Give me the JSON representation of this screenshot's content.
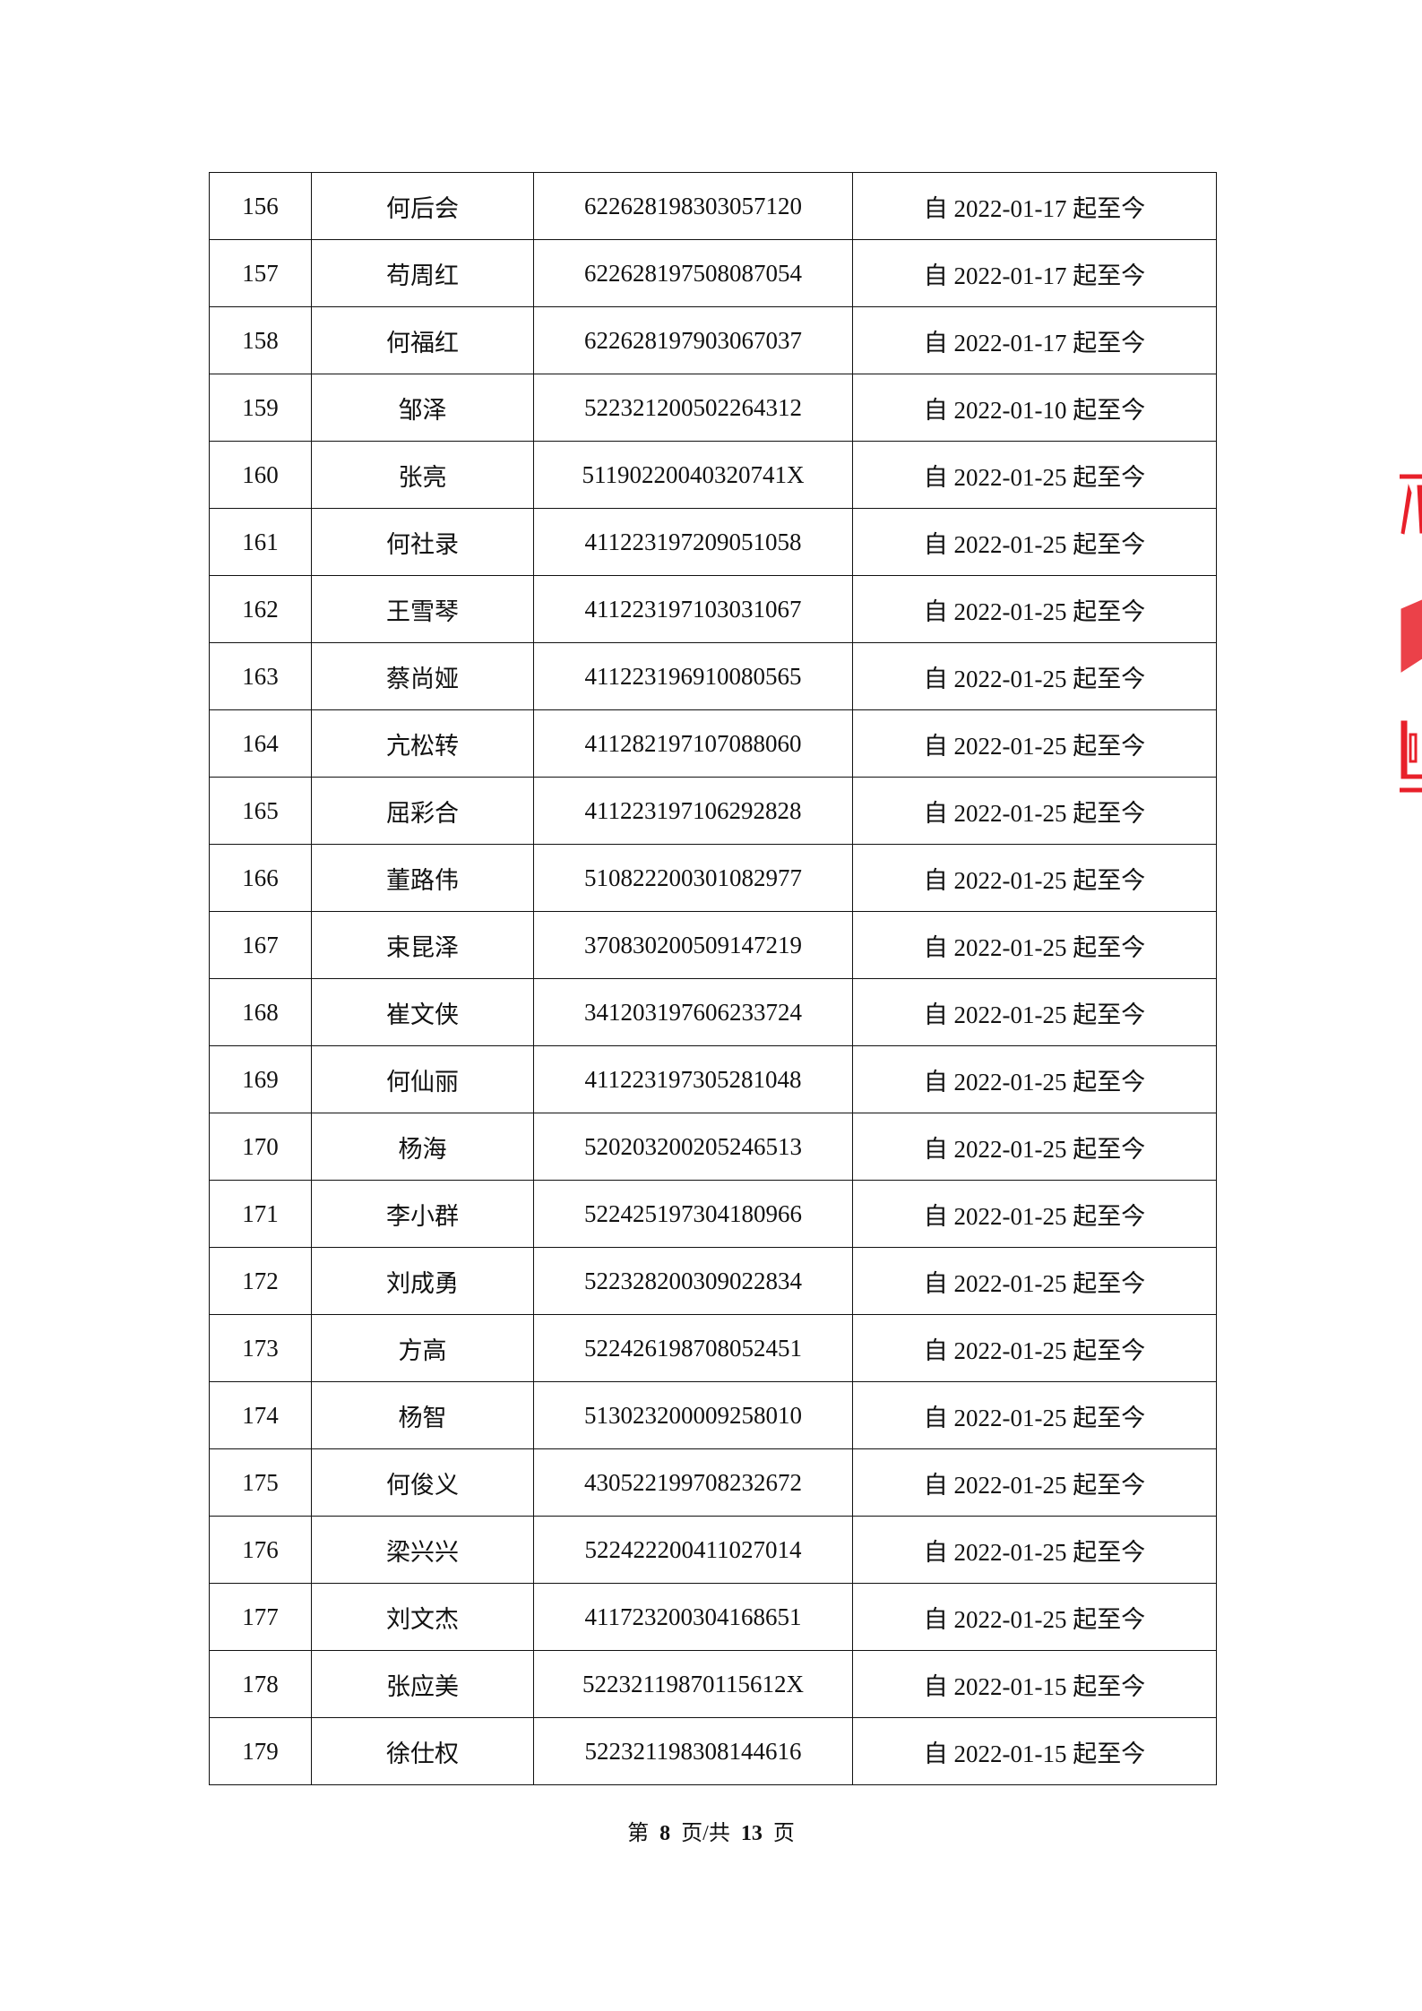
{
  "rows": [
    {
      "no": "156",
      "name": "何后会",
      "id": "622628198303057120",
      "period": "自 2022-01-17 起至今"
    },
    {
      "no": "157",
      "name": "苟周红",
      "id": "622628197508087054",
      "period": "自 2022-01-17 起至今"
    },
    {
      "no": "158",
      "name": "何福红",
      "id": "622628197903067037",
      "period": "自 2022-01-17 起至今"
    },
    {
      "no": "159",
      "name": "邹泽",
      "id": "522321200502264312",
      "period": "自 2022-01-10 起至今"
    },
    {
      "no": "160",
      "name": "张亮",
      "id": "51190220040320741X",
      "period": "自 2022-01-25 起至今"
    },
    {
      "no": "161",
      "name": "何社录",
      "id": "411223197209051058",
      "period": "自 2022-01-25 起至今"
    },
    {
      "no": "162",
      "name": "王雪琴",
      "id": "411223197103031067",
      "period": "自 2022-01-25 起至今"
    },
    {
      "no": "163",
      "name": "蔡尚娅",
      "id": "411223196910080565",
      "period": "自 2022-01-25 起至今"
    },
    {
      "no": "164",
      "name": "亢松转",
      "id": "411282197107088060",
      "period": "自 2022-01-25 起至今"
    },
    {
      "no": "165",
      "name": "屈彩合",
      "id": "411223197106292828",
      "period": "自 2022-01-25 起至今"
    },
    {
      "no": "166",
      "name": "董路伟",
      "id": "510822200301082977",
      "period": "自 2022-01-25 起至今"
    },
    {
      "no": "167",
      "name": "束昆泽",
      "id": "370830200509147219",
      "period": "自 2022-01-25 起至今"
    },
    {
      "no": "168",
      "name": "崔文侠",
      "id": "341203197606233724",
      "period": "自 2022-01-25 起至今"
    },
    {
      "no": "169",
      "name": "何仙丽",
      "id": "411223197305281048",
      "period": "自 2022-01-25 起至今"
    },
    {
      "no": "170",
      "name": "杨海",
      "id": "520203200205246513",
      "period": "自 2022-01-25 起至今"
    },
    {
      "no": "171",
      "name": "李小群",
      "id": "522425197304180966",
      "period": "自 2022-01-25 起至今"
    },
    {
      "no": "172",
      "name": "刘成勇",
      "id": "522328200309022834",
      "period": "自 2022-01-25 起至今"
    },
    {
      "no": "173",
      "name": "方高",
      "id": "522426198708052451",
      "period": "自 2022-01-25 起至今"
    },
    {
      "no": "174",
      "name": "杨智",
      "id": "513023200009258010",
      "period": "自 2022-01-25 起至今"
    },
    {
      "no": "175",
      "name": "何俊义",
      "id": "430522199708232672",
      "period": "自 2022-01-25 起至今"
    },
    {
      "no": "176",
      "name": "梁兴兴",
      "id": "522422200411027014",
      "period": "自 2022-01-25 起至今"
    },
    {
      "no": "177",
      "name": "刘文杰",
      "id": "411723200304168651",
      "period": "自 2022-01-25 起至今"
    },
    {
      "no": "178",
      "name": "张应美",
      "id": "52232119870115612X",
      "period": "自 2022-01-15 起至今"
    },
    {
      "no": "179",
      "name": "徐仕权",
      "id": "522321198308144616",
      "period": "自 2022-01-15 起至今"
    }
  ],
  "footer": {
    "prefix": "第",
    "page": "8",
    "middle": "页/共",
    "total": "13",
    "suffix": "页"
  },
  "stamp": {
    "color": "#e8202a"
  }
}
